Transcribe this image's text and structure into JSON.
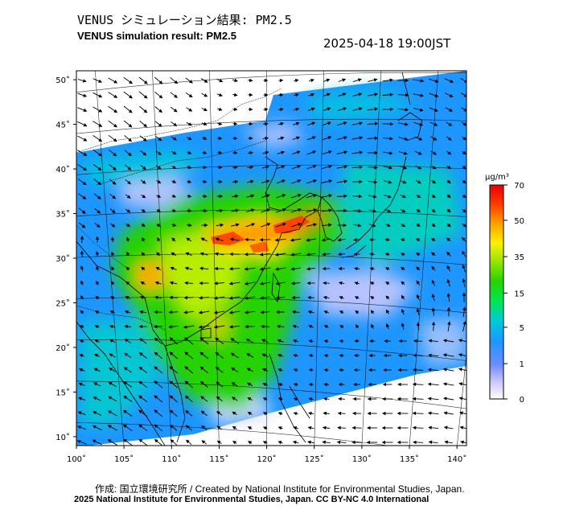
{
  "header": {
    "title_jp": "VENUS シミュレーション結果: PM2.5",
    "title_en": "VENUS simulation result: PM2.5",
    "timestamp": "2025-04-18 19:00JST"
  },
  "footer": {
    "credit": "作成: 国立環境研究所 / Created by National Institute for Environmental Studies, Japan.",
    "license": "2025 National Institute for Environmental Studies, Japan. CC BY-NC 4.0 International"
  },
  "map": {
    "lat_labels": [
      "50˚",
      "45˚",
      "40˚",
      "35˚",
      "30˚",
      "25˚",
      "20˚",
      "15˚",
      "10˚"
    ],
    "lat_values": [
      50,
      45,
      40,
      35,
      30,
      25,
      20,
      15,
      10
    ],
    "lon_labels": [
      "100˚",
      "105˚",
      "110˚",
      "115˚",
      "120˚",
      "125˚",
      "130˚",
      "135˚",
      "140˚"
    ],
    "lon_values": [
      100,
      105,
      110,
      115,
      120,
      125,
      130,
      135,
      140
    ],
    "extent": {
      "lon_min": 100,
      "lon_max": 141,
      "lat_min": 9,
      "lat_max": 51
    }
  },
  "colorbar": {
    "unit": "µg/m³",
    "tick_labels": [
      "70",
      "50",
      "35",
      "15",
      "5",
      "1",
      "0"
    ],
    "tick_values": [
      70,
      50,
      35,
      15,
      5,
      1,
      0
    ],
    "colors": [
      "#ffffff",
      "#c8c8ff",
      "#5a7bff",
      "#1e96ff",
      "#00d2c8",
      "#00e650",
      "#28d200",
      "#a0e600",
      "#fff000",
      "#ffa000",
      "#ff3c00",
      "#e60000"
    ]
  }
}
